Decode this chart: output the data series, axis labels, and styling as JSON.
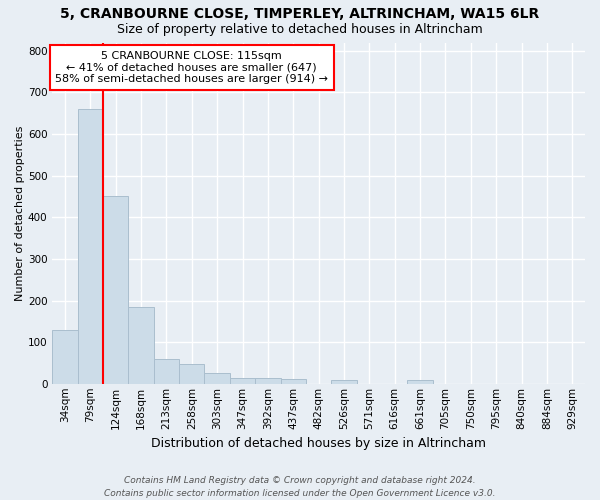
{
  "title1": "5, CRANBOURNE CLOSE, TIMPERLEY, ALTRINCHAM, WA15 6LR",
  "title2": "Size of property relative to detached houses in Altrincham",
  "xlabel": "Distribution of detached houses by size in Altrincham",
  "ylabel": "Number of detached properties",
  "bar_color": "#ccdce8",
  "bar_edge_color": "#aabece",
  "categories": [
    "34sqm",
    "79sqm",
    "124sqm",
    "168sqm",
    "213sqm",
    "258sqm",
    "303sqm",
    "347sqm",
    "392sqm",
    "437sqm",
    "482sqm",
    "526sqm",
    "571sqm",
    "616sqm",
    "661sqm",
    "705sqm",
    "750sqm",
    "795sqm",
    "840sqm",
    "884sqm",
    "929sqm"
  ],
  "values": [
    130,
    660,
    450,
    185,
    60,
    48,
    27,
    13,
    14,
    11,
    0,
    8,
    0,
    0,
    9,
    0,
    0,
    0,
    0,
    0,
    0
  ],
  "vline_x": 2,
  "annotation_text": "5 CRANBOURNE CLOSE: 115sqm\n← 41% of detached houses are smaller (647)\n58% of semi-detached houses are larger (914) →",
  "annotation_box_color": "white",
  "annotation_box_edge_color": "red",
  "vline_color": "red",
  "ylim": [
    0,
    820
  ],
  "yticks": [
    0,
    100,
    200,
    300,
    400,
    500,
    600,
    700,
    800
  ],
  "footer_text": "Contains HM Land Registry data © Crown copyright and database right 2024.\nContains public sector information licensed under the Open Government Licence v3.0.",
  "background_color": "#e8eef4",
  "grid_color": "#ffffff",
  "title1_fontsize": 10,
  "title2_fontsize": 9,
  "ylabel_fontsize": 8,
  "xlabel_fontsize": 9,
  "tick_fontsize": 7.5,
  "footer_fontsize": 6.5
}
